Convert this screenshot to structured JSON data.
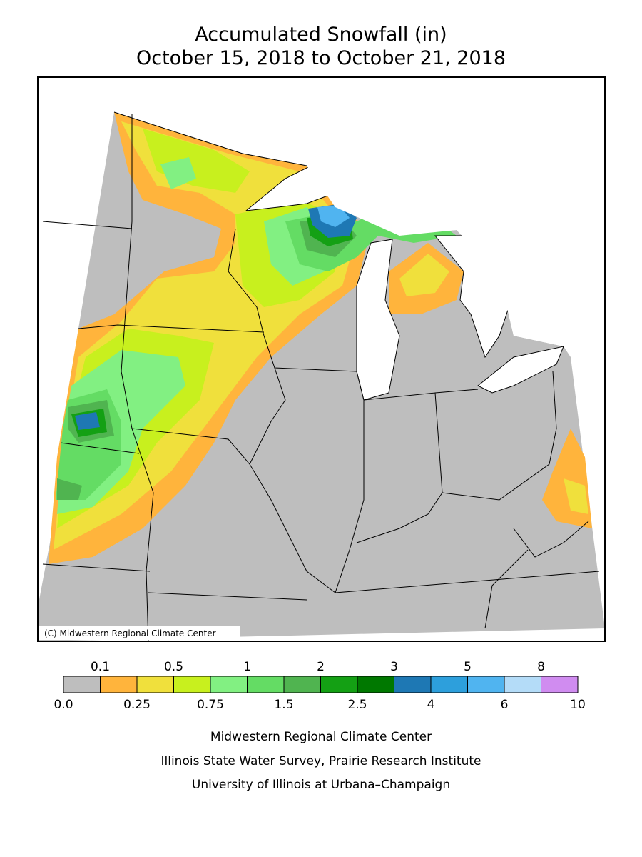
{
  "title": "Accumulated Snowfall (in)",
  "subtitle": "October 15, 2018 to October 21, 2018",
  "copyright": "(C) Midwestern Regional Climate Center",
  "legend": {
    "bounds": [
      {
        "value": 0,
        "label": "0.0"
      },
      0.1,
      0.25,
      0.5,
      0.75,
      1,
      1.5,
      2,
      2.5,
      3,
      4,
      5,
      6,
      8,
      10
    ],
    "colors": [
      "#bebebe",
      "#ffb43c",
      "#f0e03c",
      "#c8f01e",
      "#82f082",
      "#64dc64",
      "#50b450",
      "#14a014",
      "#007800",
      "#1e78b4",
      "#2d9fdc",
      "#50b4f0",
      "#b4dcf8",
      "#d08cf0"
    ]
  },
  "credits": [
    "Midwestern Regional Climate Center",
    "Illinois State Water Survey, Prairie Research Institute",
    "University of Illinois at Urbana–Champaign"
  ]
}
